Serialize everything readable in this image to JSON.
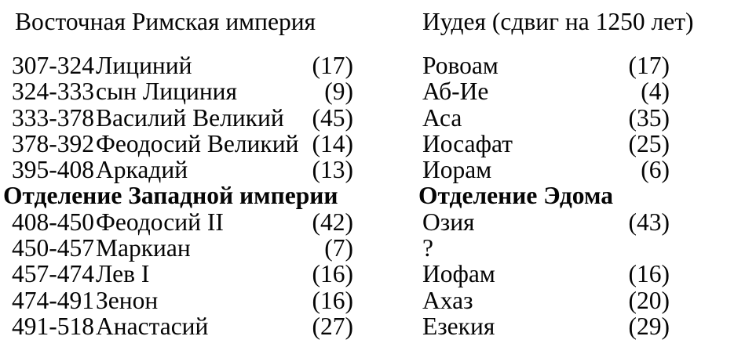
{
  "left_table": {
    "title": "Восточная Римская империя",
    "rows": [
      {
        "years": "307-324",
        "name": "Лициний",
        "duration": "(17)"
      },
      {
        "years": "324-333",
        "name": "сын Лициния",
        "duration": "(9)"
      },
      {
        "years": "333-378",
        "name": "Василий Великий",
        "duration": "(45)"
      },
      {
        "years": "378-392",
        "name": "Феодосий Великий",
        "duration": "(14)"
      },
      {
        "years": "395-408",
        "name": "Аркадий",
        "duration": "(13)"
      },
      {
        "section": "Отделение Западной империи"
      },
      {
        "years": "408-450",
        "name": "Феодосий II",
        "duration": "(42)"
      },
      {
        "years": "450-457",
        "name": "Маркиан",
        "duration": "(7)"
      },
      {
        "years": "457-474",
        "name": "Лев I",
        "duration": "(16)"
      },
      {
        "years": "474-491",
        "name": "Зенон",
        "duration": "(16)"
      },
      {
        "years": "491-518",
        "name": "Анастасий",
        "duration": "(27)"
      }
    ]
  },
  "right_table": {
    "title": "Иудея (сдвиг на 1250 лет)",
    "rows": [
      {
        "name": "Ровоам",
        "duration": "(17)"
      },
      {
        "name": "Аб-Ие",
        "duration": "(4)"
      },
      {
        "name": "Аса",
        "duration": "(35)"
      },
      {
        "name": "Иосафат",
        "duration": "(25)"
      },
      {
        "name": "Иорам",
        "duration": "(6)"
      },
      {
        "section": "Отделение Эдома"
      },
      {
        "name": "Озия",
        "duration": "(43)"
      },
      {
        "name": "?",
        "duration": ""
      },
      {
        "name": "Иофам",
        "duration": "(16)"
      },
      {
        "name": "Ахаз",
        "duration": "(20)"
      },
      {
        "name": "Езекия",
        "duration": "(29)"
      }
    ]
  },
  "colors": {
    "background": "#ffffff",
    "text": "#050505"
  }
}
